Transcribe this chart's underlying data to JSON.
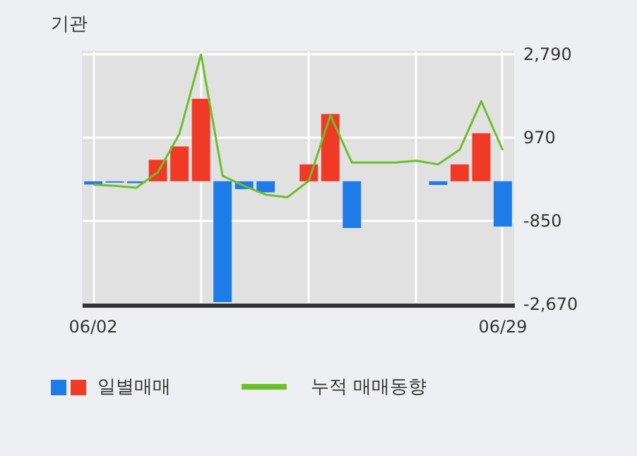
{
  "chart_data": {
    "type": "bar",
    "title": "기관",
    "categories": [
      "06/02",
      null,
      null,
      null,
      null,
      null,
      null,
      null,
      null,
      null,
      null,
      null,
      null,
      null,
      null,
      null,
      null,
      null,
      null,
      "06/29"
    ],
    "series": [
      {
        "name": "일별매매",
        "colors": [
          "#1e7ce8",
          "#1e7ce8",
          "#1e7ce8",
          "#f03a26",
          "#f03a26",
          "#f03a26",
          "#1e7ce8",
          "#1e7ce8",
          "#1e7ce8",
          "#f03a26",
          "#f03a26",
          "#f03a26",
          "#1e7ce8",
          "#f03a26",
          "#f03a26",
          "#f03a26",
          "#1e7ce8",
          "#f03a26",
          "#f03a26",
          "#1e7ce8"
        ],
        "values": [
          -70,
          -30,
          -40,
          470,
          760,
          1800,
          -2640,
          -170,
          -240,
          0,
          370,
          1470,
          -1020,
          0,
          0,
          0,
          -80,
          370,
          1050,
          -990
        ]
      },
      {
        "name": "누적 매매동향",
        "type": "line",
        "color": "#6cbf2a",
        "values": [
          -70,
          -100,
          -140,
          200,
          1040,
          2770,
          120,
          -100,
          -290,
          -350,
          10,
          1440,
          410,
          410,
          410,
          450,
          370,
          690,
          1750,
          680
        ]
      }
    ],
    "ylim": [
      -2700,
      2850
    ],
    "yticks": [
      {
        "value": 2790,
        "label": "2,790"
      },
      {
        "value": 970,
        "label": "970"
      },
      {
        "value": -850,
        "label": "-850"
      },
      {
        "value": -2670,
        "label": "-2,670"
      }
    ],
    "grid": true,
    "legend": "bottom"
  }
}
